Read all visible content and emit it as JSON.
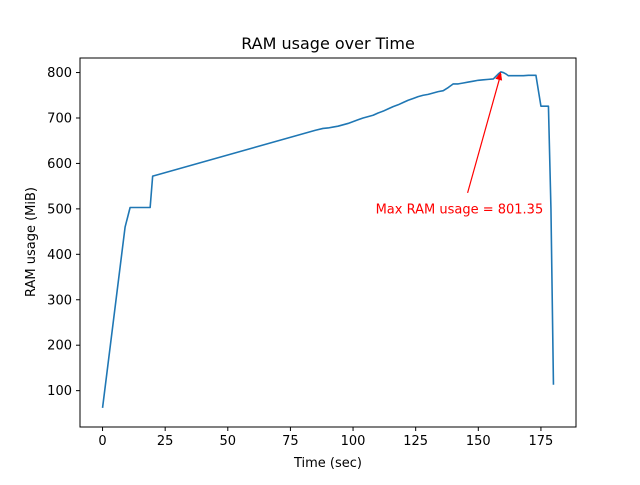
{
  "chart_data": {
    "type": "line",
    "title": "RAM usage over Time",
    "xlabel": "Time (sec)",
    "ylabel": "RAM usage (MiB)",
    "xlim": [
      -9,
      189
    ],
    "ylim": [
      20,
      832
    ],
    "xticks": [
      0,
      25,
      50,
      75,
      100,
      125,
      150,
      175
    ],
    "yticks": [
      100,
      200,
      300,
      400,
      500,
      600,
      700,
      800
    ],
    "grid": false,
    "series": [
      {
        "color": "#1f77b4",
        "x": [
          0,
          9,
          11,
          19,
          20,
          22,
          85,
          88,
          90,
          92,
          94,
          96,
          98,
          100,
          102,
          104,
          106,
          108,
          110,
          112,
          114,
          116,
          118,
          120,
          122,
          124,
          126,
          128,
          130,
          132,
          134,
          136,
          138,
          140,
          142,
          144,
          146,
          148,
          150,
          152,
          154,
          156,
          158,
          159,
          160,
          161,
          162,
          164,
          166,
          168,
          170,
          171,
          172,
          173,
          174,
          175,
          176,
          177,
          178,
          179,
          180
        ],
        "y": [
          62,
          460,
          503,
          503,
          572,
          575,
          673,
          677,
          678,
          680,
          682,
          685,
          688,
          692,
          696,
          700,
          703,
          706,
          711,
          715,
          720,
          725,
          729,
          734,
          739,
          743,
          747,
          750,
          752,
          755,
          758,
          760,
          767,
          775,
          775,
          777,
          779,
          781,
          783,
          784,
          785,
          786,
          797,
          801.35,
          800,
          797,
          793,
          793,
          793,
          793,
          794,
          794,
          794,
          794,
          760,
          726,
          726,
          726,
          726,
          500,
          113
        ]
      }
    ],
    "annotations": [
      {
        "text": "Max RAM usage = 801.35",
        "color": "#ff0000",
        "x": 159,
        "y": 801.35,
        "text_x": 109,
        "text_y": 500
      }
    ]
  }
}
